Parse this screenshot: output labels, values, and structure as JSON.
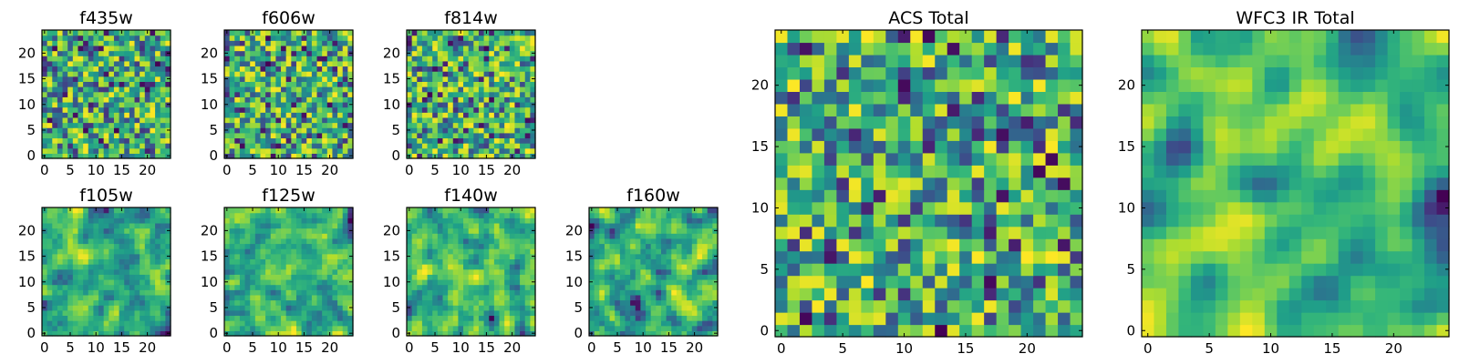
{
  "chart_data": [
    {
      "id": "f435w",
      "type": "heatmap",
      "title": "f435w",
      "size": 25,
      "seed": 11,
      "smooth": 0,
      "xticks": [
        0,
        5,
        10,
        15,
        20
      ],
      "yticks": [
        0,
        5,
        10,
        15,
        20
      ],
      "xlim": [
        0,
        25
      ],
      "ylim": [
        0,
        25
      ],
      "colormap": "viridis"
    },
    {
      "id": "f606w",
      "type": "heatmap",
      "title": "f606w",
      "size": 25,
      "seed": 23,
      "smooth": 0,
      "xticks": [
        0,
        5,
        10,
        15,
        20
      ],
      "yticks": [
        0,
        5,
        10,
        15,
        20
      ],
      "xlim": [
        0,
        25
      ],
      "ylim": [
        0,
        25
      ],
      "colormap": "viridis"
    },
    {
      "id": "f814w",
      "type": "heatmap",
      "title": "f814w",
      "size": 25,
      "seed": 37,
      "smooth": 0,
      "xticks": [
        0,
        5,
        10,
        15,
        20
      ],
      "yticks": [
        0,
        5,
        10,
        15,
        20
      ],
      "xlim": [
        0,
        25
      ],
      "ylim": [
        0,
        25
      ],
      "colormap": "viridis"
    },
    {
      "id": "f105w",
      "type": "heatmap",
      "title": "f105w",
      "size": 25,
      "seed": 41,
      "smooth": 1,
      "xticks": [
        0,
        5,
        10,
        15,
        20
      ],
      "yticks": [
        0,
        5,
        10,
        15,
        20
      ],
      "xlim": [
        0,
        25
      ],
      "ylim": [
        0,
        25
      ],
      "colormap": "viridis"
    },
    {
      "id": "f125w",
      "type": "heatmap",
      "title": "f125w",
      "size": 25,
      "seed": 53,
      "smooth": 1,
      "xticks": [
        0,
        5,
        10,
        15,
        20
      ],
      "yticks": [
        0,
        5,
        10,
        15,
        20
      ],
      "xlim": [
        0,
        25
      ],
      "ylim": [
        0,
        25
      ],
      "colormap": "viridis"
    },
    {
      "id": "f140w",
      "type": "heatmap",
      "title": "f140w",
      "size": 25,
      "seed": 67,
      "smooth": 1,
      "xticks": [
        0,
        5,
        10,
        15,
        20
      ],
      "yticks": [
        0,
        5,
        10,
        15,
        20
      ],
      "xlim": [
        0,
        25
      ],
      "ylim": [
        0,
        25
      ],
      "colormap": "viridis"
    },
    {
      "id": "f160w",
      "type": "heatmap",
      "title": "f160w",
      "size": 25,
      "seed": 79,
      "smooth": 1,
      "xticks": [
        0,
        5,
        10,
        15,
        20
      ],
      "yticks": [
        0,
        5,
        10,
        15,
        20
      ],
      "xlim": [
        0,
        25
      ],
      "ylim": [
        0,
        25
      ],
      "colormap": "viridis"
    },
    {
      "id": "acs-total",
      "type": "heatmap",
      "title": "ACS Total",
      "size": 25,
      "seed": 97,
      "smooth": 0,
      "xticks": [
        0,
        5,
        10,
        15,
        20
      ],
      "yticks": [
        0,
        5,
        10,
        15,
        20
      ],
      "xlim": [
        0,
        25
      ],
      "ylim": [
        0,
        25
      ],
      "colormap": "viridis"
    },
    {
      "id": "wfc3-ir-total",
      "type": "heatmap",
      "title": "WFC3 IR Total",
      "size": 25,
      "seed": 113,
      "smooth": 2,
      "xticks": [
        0,
        5,
        10,
        15,
        20
      ],
      "yticks": [
        0,
        5,
        10,
        15,
        20
      ],
      "xlim": [
        0,
        25
      ],
      "ylim": [
        0,
        25
      ],
      "colormap": "viridis"
    }
  ]
}
